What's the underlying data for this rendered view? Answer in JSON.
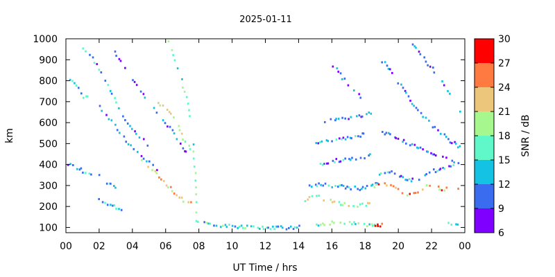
{
  "chart_data": {
    "type": "heatmap",
    "title": "2025-01-11",
    "xlabel": "UT Time / hrs",
    "ylabel": "km",
    "xlim": [
      0,
      24
    ],
    "ylim": [
      75,
      1000
    ],
    "x_ticks": [
      "00",
      "02",
      "04",
      "06",
      "08",
      "10",
      "12",
      "14",
      "16",
      "18",
      "20",
      "22",
      "00"
    ],
    "y_ticks": [
      100,
      200,
      300,
      400,
      500,
      600,
      700,
      800,
      900,
      1000
    ],
    "colorbar": {
      "label": "SNR / dB",
      "ticks": [
        6,
        9,
        12,
        15,
        18,
        21,
        24,
        27,
        30
      ],
      "bands": [
        {
          "from": 6,
          "to": 9,
          "color": "#8000ff"
        },
        {
          "from": 9,
          "to": 12,
          "color": "#3a6cf0"
        },
        {
          "from": 12,
          "to": 15,
          "color": "#14c3e4"
        },
        {
          "from": 15,
          "to": 18,
          "color": "#60f8c8"
        },
        {
          "from": 18,
          "to": 21,
          "color": "#a6f88e"
        },
        {
          "from": 21,
          "to": 24,
          "color": "#ecc67a"
        },
        {
          "from": 24,
          "to": 27,
          "color": "#ff7a40"
        },
        {
          "from": 27,
          "to": 30,
          "color": "#ff0000"
        }
      ]
    },
    "traces": [
      {
        "points": [
          [
            0.2,
            810
          ],
          [
            0.6,
            780
          ],
          [
            1.0,
            730
          ],
          [
            1.4,
            720
          ]
        ],
        "snr": 14
      },
      {
        "points": [
          [
            0.1,
            410
          ],
          [
            0.5,
            395
          ],
          [
            0.9,
            380
          ],
          [
            1.2,
            360
          ],
          [
            1.6,
            345
          ]
        ],
        "snr": 12
      },
      {
        "points": [
          [
            1.0,
            960
          ],
          [
            1.4,
            930
          ],
          [
            1.8,
            880
          ],
          [
            2.2,
            820
          ],
          [
            2.6,
            760
          ],
          [
            3.0,
            700
          ],
          [
            3.4,
            640
          ],
          [
            3.8,
            590
          ],
          [
            4.2,
            550
          ],
          [
            4.6,
            520
          ],
          [
            5.0,
            490
          ]
        ],
        "snr": 12
      },
      {
        "points": [
          [
            2.6,
            980
          ],
          [
            3.0,
            930
          ],
          [
            3.4,
            880
          ],
          [
            3.8,
            830
          ],
          [
            4.2,
            780
          ],
          [
            4.6,
            740
          ],
          [
            5.0,
            700
          ],
          [
            5.4,
            660
          ],
          [
            5.8,
            620
          ],
          [
            6.2,
            580
          ],
          [
            6.6,
            530
          ],
          [
            7.0,
            480
          ],
          [
            7.3,
            470
          ]
        ],
        "snr": 11
      },
      {
        "points": [
          [
            2.0,
            680
          ],
          [
            2.4,
            640
          ],
          [
            2.8,
            600
          ],
          [
            3.2,
            560
          ],
          [
            3.6,
            520
          ],
          [
            4.0,
            480
          ],
          [
            4.4,
            450
          ],
          [
            4.8,
            420
          ],
          [
            5.2,
            400
          ],
          [
            5.6,
            380
          ]
        ],
        "snr": 11
      },
      {
        "points": [
          [
            2.0,
            350
          ],
          [
            2.4,
            320
          ],
          [
            2.8,
            300
          ],
          [
            3.2,
            280
          ],
          [
            3.6,
            270
          ]
        ],
        "snr": 13
      },
      {
        "points": [
          [
            1.8,
            240
          ],
          [
            2.2,
            220
          ],
          [
            2.6,
            210
          ],
          [
            3.0,
            200
          ],
          [
            3.4,
            190
          ]
        ],
        "snr": 14
      },
      {
        "points": [
          [
            4.5,
            430
          ],
          [
            4.9,
            400
          ],
          [
            5.3,
            370
          ],
          [
            5.7,
            330
          ],
          [
            6.1,
            300
          ],
          [
            6.5,
            270
          ],
          [
            6.9,
            240
          ],
          [
            7.3,
            225
          ],
          [
            7.6,
            220
          ]
        ],
        "snr": 22
      },
      {
        "points": [
          [
            6.1,
            990
          ],
          [
            6.4,
            930
          ],
          [
            6.7,
            860
          ],
          [
            7.0,
            780
          ],
          [
            7.3,
            700
          ],
          [
            7.5,
            600
          ],
          [
            7.6,
            500
          ],
          [
            7.7,
            400
          ],
          [
            7.75,
            300
          ],
          [
            7.8,
            200
          ],
          [
            7.85,
            150
          ]
        ],
        "snr": 16
      },
      {
        "points": [
          [
            5.5,
            700
          ],
          [
            5.9,
            680
          ],
          [
            6.3,
            640
          ],
          [
            6.7,
            590
          ],
          [
            7.0,
            530
          ],
          [
            7.3,
            500
          ],
          [
            7.5,
            480
          ]
        ],
        "snr": 20
      },
      {
        "points": [
          [
            7.8,
            140
          ],
          [
            8.5,
            125
          ],
          [
            9.5,
            112
          ],
          [
            10.5,
            108
          ],
          [
            11.5,
            106
          ],
          [
            12.5,
            105
          ],
          [
            13.5,
            104
          ],
          [
            14.2,
            106
          ]
        ],
        "snr": 15
      },
      {
        "points": [
          [
            14.2,
            230
          ],
          [
            14.6,
            245
          ],
          [
            15.0,
            255
          ],
          [
            15.5,
            240
          ],
          [
            16.0,
            230
          ],
          [
            16.5,
            220
          ],
          [
            17.0,
            215
          ],
          [
            17.5,
            210
          ],
          [
            18.0,
            212
          ],
          [
            18.5,
            218
          ]
        ],
        "snr": 19
      },
      {
        "points": [
          [
            14.6,
            300
          ],
          [
            15.2,
            310
          ],
          [
            15.8,
            305
          ],
          [
            16.4,
            300
          ],
          [
            17.0,
            295
          ],
          [
            17.6,
            290
          ],
          [
            18.2,
            300
          ],
          [
            18.8,
            320
          ]
        ],
        "snr": 13
      },
      {
        "points": [
          [
            14.8,
            400
          ],
          [
            15.4,
            410
          ],
          [
            16.0,
            420
          ],
          [
            16.6,
            430
          ],
          [
            17.2,
            430
          ],
          [
            17.8,
            440
          ],
          [
            18.4,
            450
          ]
        ],
        "snr": 12
      },
      {
        "points": [
          [
            15.0,
            510
          ],
          [
            15.6,
            520
          ],
          [
            16.2,
            525
          ],
          [
            16.8,
            530
          ],
          [
            17.4,
            540
          ],
          [
            18.0,
            550
          ]
        ],
        "snr": 12
      },
      {
        "points": [
          [
            15.4,
            610
          ],
          [
            16.0,
            620
          ],
          [
            16.6,
            620
          ],
          [
            17.2,
            630
          ],
          [
            17.8,
            640
          ],
          [
            18.4,
            650
          ]
        ],
        "snr": 12
      },
      {
        "points": [
          [
            15.0,
            120
          ],
          [
            15.8,
            125
          ],
          [
            16.6,
            125
          ],
          [
            17.4,
            122
          ],
          [
            18.2,
            118
          ],
          [
            18.8,
            115
          ]
        ],
        "snr": 17
      },
      {
        "points": [
          [
            18.5,
            300
          ],
          [
            19.0,
            320
          ],
          [
            19.4,
            310
          ],
          [
            19.8,
            290
          ],
          [
            20.2,
            270
          ],
          [
            20.6,
            260
          ],
          [
            21.0,
            270
          ],
          [
            21.4,
            290
          ],
          [
            21.8,
            310
          ],
          [
            22.2,
            300
          ],
          [
            22.6,
            290
          ],
          [
            23.0,
            285
          ],
          [
            23.4,
            290
          ],
          [
            23.8,
            280
          ]
        ],
        "snr": 24
      },
      {
        "points": [
          [
            18.8,
            360
          ],
          [
            19.4,
            370
          ],
          [
            20.0,
            350
          ],
          [
            20.6,
            330
          ],
          [
            21.2,
            340
          ],
          [
            21.8,
            370
          ],
          [
            22.4,
            380
          ],
          [
            23.0,
            390
          ],
          [
            23.6,
            400
          ]
        ],
        "snr": 12
      },
      {
        "points": [
          [
            19.0,
            560
          ],
          [
            19.6,
            540
          ],
          [
            20.2,
            520
          ],
          [
            20.8,
            500
          ],
          [
            21.4,
            480
          ],
          [
            22.0,
            460
          ],
          [
            22.6,
            440
          ],
          [
            23.2,
            420
          ],
          [
            23.8,
            400
          ]
        ],
        "snr": 11
      },
      {
        "points": [
          [
            19.0,
            900
          ],
          [
            19.6,
            840
          ],
          [
            20.2,
            770
          ],
          [
            20.8,
            700
          ],
          [
            21.4,
            640
          ],
          [
            22.0,
            590
          ],
          [
            22.6,
            550
          ],
          [
            23.2,
            510
          ],
          [
            23.8,
            480
          ]
        ],
        "snr": 11
      },
      {
        "points": [
          [
            20.8,
            980
          ],
          [
            21.4,
            920
          ],
          [
            22.0,
            860
          ],
          [
            22.6,
            800
          ],
          [
            23.2,
            720
          ],
          [
            23.8,
            640
          ]
        ],
        "snr": 11
      },
      {
        "points": [
          [
            16.0,
            880
          ],
          [
            16.6,
            820
          ],
          [
            17.2,
            760
          ],
          [
            17.8,
            720
          ]
        ],
        "snr": 11
      },
      {
        "points": [
          [
            18.6,
            110
          ],
          [
            18.8,
            115
          ],
          [
            19.0,
            120
          ]
        ],
        "snr": 28
      },
      {
        "points": [
          [
            23.0,
            120
          ],
          [
            23.4,
            125
          ],
          [
            23.8,
            130
          ]
        ],
        "snr": 15
      }
    ]
  }
}
